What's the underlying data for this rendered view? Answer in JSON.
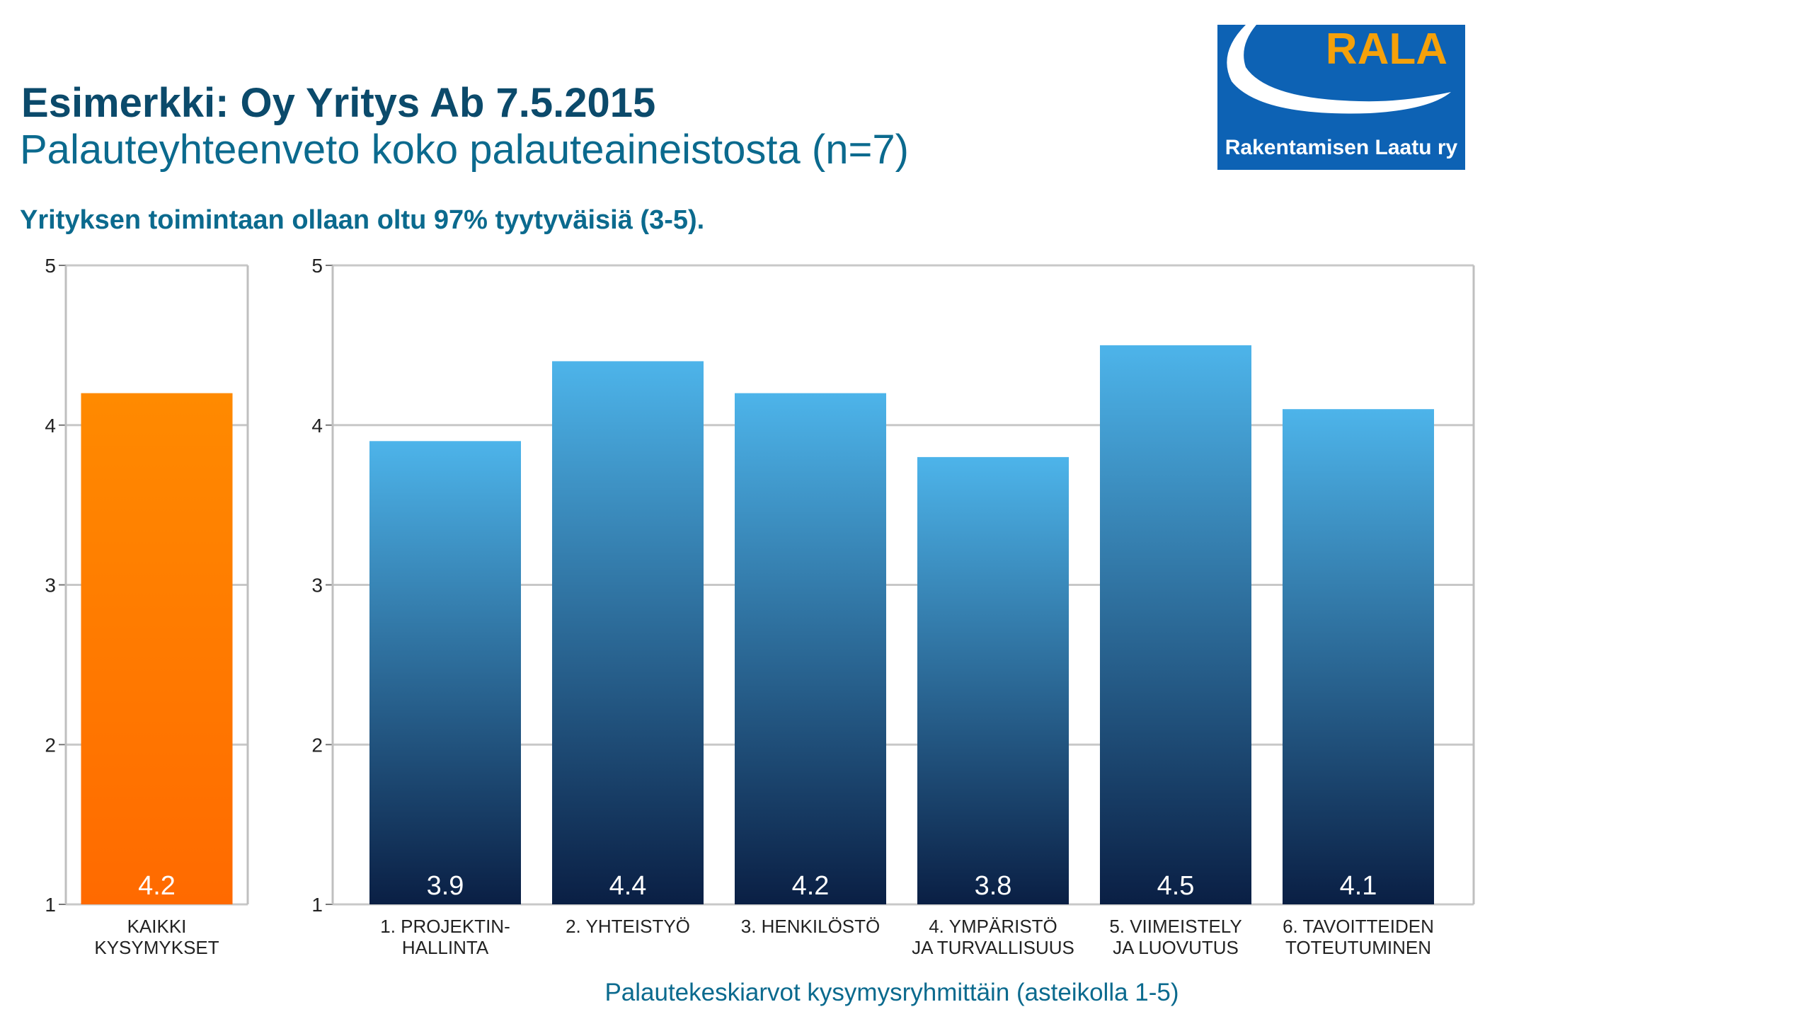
{
  "header": {
    "title": "Esimerkki: Oy Yritys Ab 7.5.2015",
    "subtitle": "Palauteyhteenveto koko palauteaineistosta (n=7)",
    "headline": "Yrityksen toimintaan ollaan oltu 97% tyytyväisiä (3-5)."
  },
  "logo": {
    "name": "RALA",
    "tagline": "Rakentamisen Laatu ry",
    "colors": {
      "blue": "#0d62b4",
      "orange": "#f5a10a"
    }
  },
  "chart_data": [
    {
      "type": "bar",
      "categories": [
        "KAIKKI KYSYMYKSET"
      ],
      "values": [
        4.2
      ],
      "ylim": [
        1,
        5
      ],
      "yticks": [
        1,
        2,
        3,
        4,
        5
      ],
      "grid": true,
      "bar_color": "#ff7a00"
    },
    {
      "type": "bar",
      "categories": [
        "1. PROJEKTIN-HALLINTA",
        "2. YHTEISTYÖ",
        "3. HENKILÖSTÖ",
        "4. YMPÄRISTÖ JA TURVALLISUUS",
        "5. VIIMEISTELY JA LUOVUTUS",
        "6. TAVOITTEIDEN TOTEUTUMINEN"
      ],
      "values": [
        3.9,
        4.4,
        4.2,
        3.8,
        4.5,
        4.1
      ],
      "ylim": [
        1,
        5
      ],
      "yticks": [
        1,
        2,
        3,
        4,
        5
      ],
      "grid": true,
      "bar_color_top": "#4db4ea",
      "bar_color_bottom": "#0a1f44",
      "xlabel": "Palautekeskiarvot kysymysryhmittäin (asteikolla 1-5)"
    }
  ]
}
